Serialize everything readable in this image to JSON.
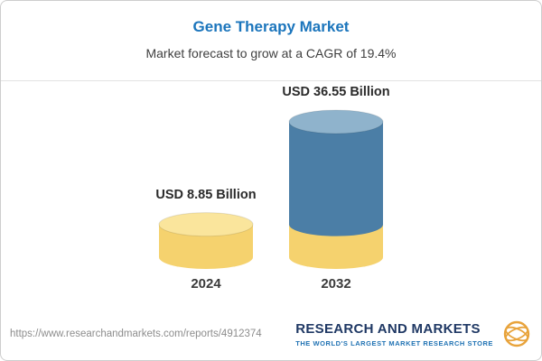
{
  "header": {
    "title": "Gene Therapy Market",
    "subtitle": "Market forecast to grow at a CAGR of 19.4%"
  },
  "chart_data": {
    "type": "bar",
    "variant": "3d-cylinder",
    "categories": [
      "2024",
      "2032"
    ],
    "values": [
      8.85,
      36.55
    ],
    "value_labels": [
      "USD 8.85 Billion",
      "USD 36.55 Billion"
    ],
    "unit": "USD Billion",
    "cagr_percent": 19.4,
    "title": "Gene Therapy Market",
    "subtitle": "Market forecast to grow at a CAGR of 19.4%",
    "xlabel": "",
    "ylabel": "",
    "ylim": [
      0,
      36.55
    ],
    "grid": false,
    "legend": "none",
    "colors": {
      "bar_2024_body": "#F5D26E",
      "bar_2024_top": "#FAE59C",
      "bar_2032_body": "#4B7EA6",
      "bar_2032_top": "#8FB3CC",
      "bar_2032_base_body": "#F5D26E"
    }
  },
  "footer": {
    "url": "https://www.researchandmarkets.com/reports/4912374",
    "brand_name": "RESEARCH AND MARKETS",
    "brand_tagline": "THE WORLD'S LARGEST MARKET RESEARCH STORE"
  },
  "theme": {
    "title_color": "#1B75BC",
    "brand_navy": "#1F3864",
    "tagline_blue": "#2173B4",
    "logo_gold": "#E8A33B"
  }
}
